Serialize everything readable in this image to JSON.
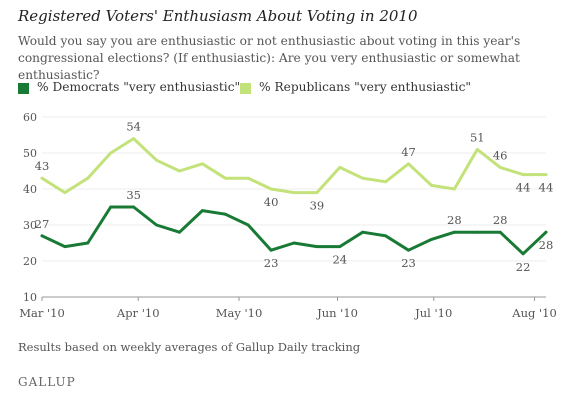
{
  "header": {
    "title": "Registered Voters' Enthusiasm About Voting in 2010",
    "question": "Would you say you are enthusiastic or not enthusiastic about voting in this year's congressional elections? (If enthusiastic): Are you very enthusiastic or somewhat enthusiastic?"
  },
  "legend": [
    {
      "label": "% Democrats \"very enthusiastic\"",
      "color": "#187a34"
    },
    {
      "label": "% Republicans \"very enthusiastic\"",
      "color": "#c3e27a"
    }
  ],
  "footnote": "Results based on weekly averages of Gallup Daily tracking",
  "brand": "GALLUP",
  "chart_data": {
    "type": "line",
    "title": "Registered Voters' Enthusiasm About Voting in 2010",
    "xlabel": "",
    "ylabel": "",
    "ylim": [
      10,
      60
    ],
    "yticks": [
      10,
      20,
      30,
      40,
      50,
      60
    ],
    "xtick_labels": [
      "Mar '10",
      "Apr '10",
      "May '10",
      "Jun '10",
      "Jul '10",
      "Aug '10"
    ],
    "xtick_weeks": [
      0,
      4.2,
      8.6,
      12.9,
      17.1,
      21.5
    ],
    "week_range": [
      0,
      22
    ],
    "grid": true,
    "legend_position": "top",
    "series": [
      {
        "name": "% Democrats \"very enthusiastic\"",
        "color": "#187a34",
        "weeks": [
          0,
          1,
          2,
          3,
          4,
          5,
          6,
          7,
          8,
          9,
          10,
          11,
          12,
          13,
          14,
          15,
          16,
          17,
          18,
          19,
          20,
          21,
          22
        ],
        "values": [
          27,
          24,
          25,
          35,
          35,
          30,
          28,
          34,
          33,
          30,
          23,
          25,
          24,
          24,
          28,
          27,
          23,
          26,
          28,
          28,
          28,
          22,
          28
        ],
        "data_labels": [
          {
            "index": 0,
            "text": "27",
            "pos": "above"
          },
          {
            "index": 4,
            "text": "35",
            "pos": "above"
          },
          {
            "index": 10,
            "text": "23",
            "pos": "below"
          },
          {
            "index": 13,
            "text": "24",
            "pos": "below"
          },
          {
            "index": 16,
            "text": "23",
            "pos": "below"
          },
          {
            "index": 18,
            "text": "28",
            "pos": "above"
          },
          {
            "index": 20,
            "text": "28",
            "pos": "above"
          },
          {
            "index": 21,
            "text": "22",
            "pos": "below"
          },
          {
            "index": 22,
            "text": "28",
            "pos": "below"
          }
        ]
      },
      {
        "name": "% Republicans \"very enthusiastic\"",
        "color": "#c3e27a",
        "weeks": [
          0,
          1,
          2,
          3,
          4,
          5,
          6,
          7,
          8,
          9,
          10,
          11,
          12,
          13,
          14,
          15,
          16,
          17,
          18,
          19,
          20,
          21,
          22
        ],
        "values": [
          43,
          39,
          43,
          50,
          54,
          48,
          45,
          47,
          43,
          43,
          40,
          39,
          39,
          46,
          43,
          42,
          47,
          41,
          40,
          51,
          46,
          44,
          44
        ],
        "data_labels": [
          {
            "index": 0,
            "text": "43",
            "pos": "above"
          },
          {
            "index": 4,
            "text": "54",
            "pos": "above"
          },
          {
            "index": 10,
            "text": "40",
            "pos": "below"
          },
          {
            "index": 12,
            "text": "39",
            "pos": "below"
          },
          {
            "index": 16,
            "text": "47",
            "pos": "above"
          },
          {
            "index": 19,
            "text": "51",
            "pos": "above"
          },
          {
            "index": 20,
            "text": "46",
            "pos": "above"
          },
          {
            "index": 21,
            "text": "44",
            "pos": "below"
          },
          {
            "index": 22,
            "text": "44",
            "pos": "below"
          }
        ]
      }
    ]
  }
}
